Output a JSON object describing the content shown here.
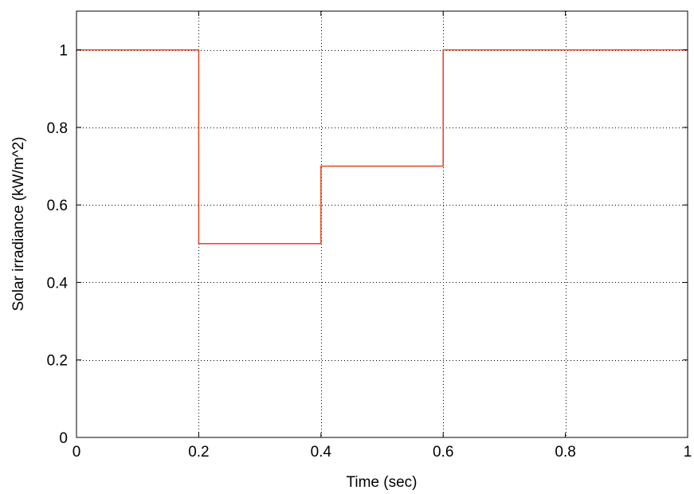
{
  "chart_data": {
    "type": "line",
    "title": "",
    "xlabel": "Time (sec)",
    "ylabel": "Solar irradiance (kW/m^2)",
    "xlim": [
      0,
      1
    ],
    "ylim": [
      0,
      1.1
    ],
    "x_ticks": [
      0,
      0.2,
      0.4,
      0.6,
      0.8,
      1
    ],
    "x_tick_labels": [
      "0",
      "0.2",
      "0.4",
      "0.6",
      "0.8",
      "1"
    ],
    "y_ticks": [
      0,
      0.2,
      0.4,
      0.6,
      0.8,
      1
    ],
    "y_tick_labels": [
      "0",
      "0.2",
      "0.4",
      "0.6",
      "0.8",
      "1"
    ],
    "grid": true,
    "legend": "none",
    "series": [
      {
        "color": "#e8441d",
        "x": [
          0,
          0.2,
          0.2,
          0.4,
          0.4,
          0.6,
          0.6,
          1
        ],
        "y": [
          1,
          1,
          0.5,
          0.5,
          0.7,
          0.7,
          1,
          1
        ]
      }
    ]
  }
}
